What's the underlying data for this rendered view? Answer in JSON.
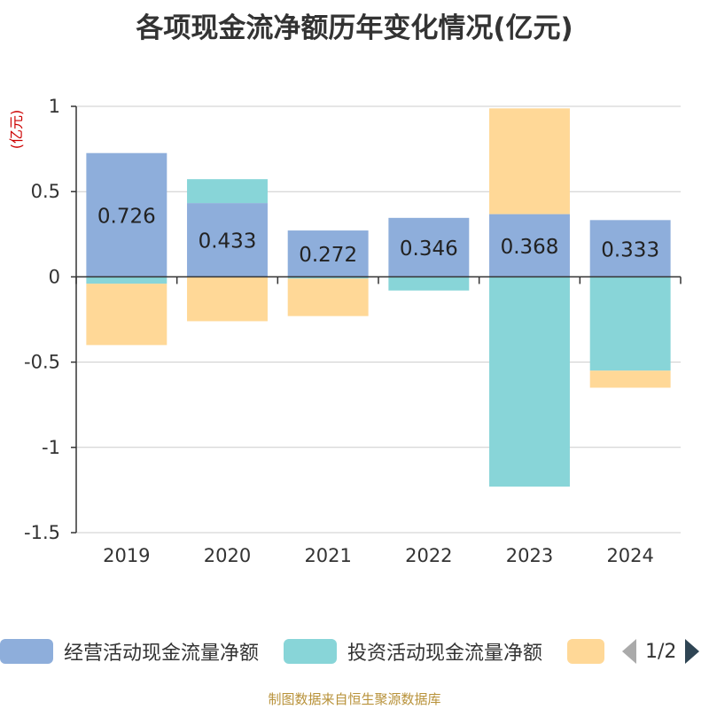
{
  "title": "各项现金流净额历年变化情况(亿元)",
  "source": "制图数据来自恒生聚源数据库",
  "chart_data": {
    "type": "bar",
    "stacked": true,
    "categories": [
      "2019",
      "2020",
      "2021",
      "2022",
      "2023",
      "2024"
    ],
    "ylabel": "(亿元)",
    "ylim": [
      -1.5,
      1
    ],
    "yticks": [
      1,
      0.5,
      0,
      -0.5,
      -1,
      -1.5
    ],
    "ytick_labels": [
      "1",
      "0.5",
      "0",
      "-0.5",
      "-1",
      "-1.5"
    ],
    "grid": true,
    "legend_position": "bottom",
    "series": [
      {
        "name": "经营活动现金流量净额",
        "color": "#8eaedb",
        "values": [
          0.726,
          0.433,
          0.272,
          0.346,
          0.368,
          0.333
        ],
        "labels": [
          "0.726",
          "0.433",
          "0.272",
          "0.346",
          "0.368",
          "0.333"
        ]
      },
      {
        "name": "投资活动现金流量净额",
        "color": "#88d5d8",
        "values": [
          -0.04,
          0.14,
          -0.01,
          -0.08,
          -1.23,
          -0.55
        ]
      },
      {
        "name": "",
        "color": "#ffd897",
        "values": [
          -0.36,
          -0.26,
          -0.22,
          0.0,
          0.62,
          -0.1
        ]
      }
    ]
  },
  "legend": {
    "items": [
      {
        "label": "经营活动现金流量净额",
        "color": "#8eaedb"
      },
      {
        "label": "投资活动现金流量净额",
        "color": "#88d5d8"
      },
      {
        "label": "",
        "color": "#ffd897"
      }
    ],
    "page_text": "1/2"
  },
  "colors": {
    "axis_label": "#cc0000",
    "source": "#b8923a",
    "grid": "#cccccc"
  }
}
